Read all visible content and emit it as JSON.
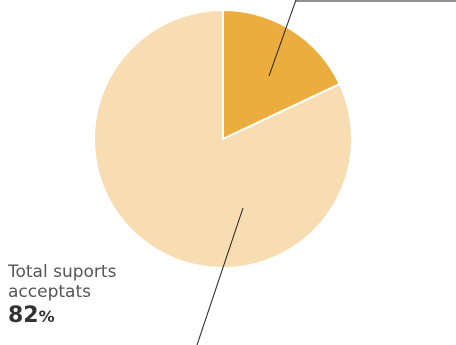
{
  "colors": {
    "slice_highlight": "#EBAD3D",
    "slice_main": "#F8DDB3",
    "leader_line": "#222222"
  },
  "chart_data": {
    "type": "pie",
    "start_angle_deg": 0,
    "direction": "clockwise",
    "slices": [
      {
        "value": 18,
        "color": "#EBAD3D"
      },
      {
        "value": 82,
        "color": "#F8DDB3"
      }
    ],
    "annotations": [
      {
        "label_line1": "Total suports",
        "label_line2": "acceptats",
        "value": "82",
        "unit": "%"
      }
    ]
  }
}
